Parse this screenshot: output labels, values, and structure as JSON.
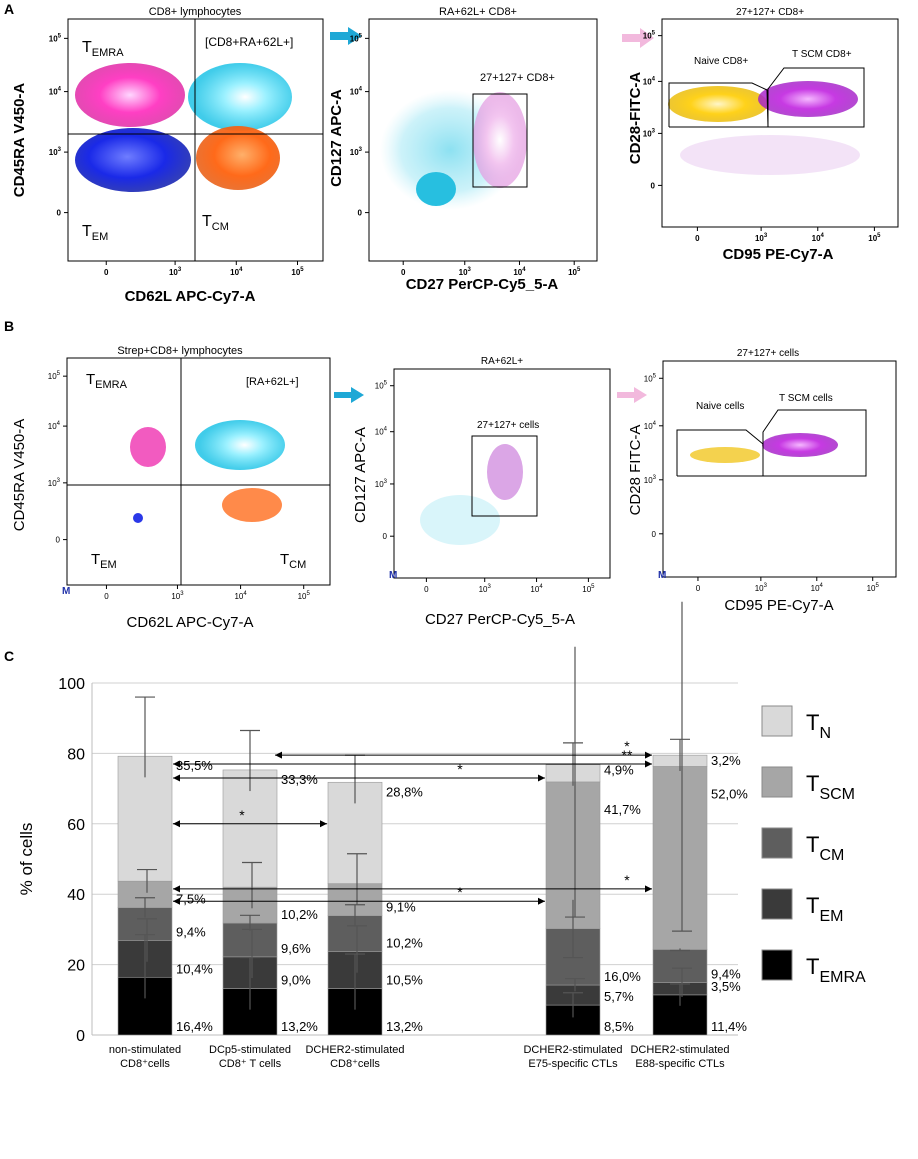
{
  "panels": {
    "A": {
      "letter": "A",
      "plot1": {
        "title": "CD8+ lymphocytes",
        "xlabel": "CD62L APC-Cy7-A",
        "ylabel": "CD45RA V450-A",
        "q_tl": "EMRA",
        "q_tr": "[CD8+RA+62L+]",
        "q_bl": "EM",
        "q_br": "CM",
        "t": "T"
      },
      "plot2": {
        "title": "RA+62L+ CD8+",
        "xlabel": "CD27 PerCP-Cy5_5-A",
        "ylabel": "CD127 APC-A",
        "gate": "27+127+ CD8+"
      },
      "plot3": {
        "title": "27+127+ CD8+",
        "xlabel": "CD95 PE-Cy7-A",
        "ylabel": "CD28-FITC-A",
        "gate_left": "Naive CD8+",
        "gate_right": "T SCM CD8+"
      }
    },
    "B": {
      "letter": "B",
      "plot1": {
        "title": "Strep+CD8+ lymphocytes",
        "xlabel": "CD62L APC-Cy7-A",
        "ylabel": "CD45RA V450-A",
        "q_tl": "EMRA",
        "q_tr": "[RA+62L+]",
        "q_bl": "EM",
        "q_br": "CM",
        "t": "T",
        "m": "M"
      },
      "plot2": {
        "title": "RA+62L+",
        "xlabel": "CD27 PerCP-Cy5_5-A",
        "ylabel": "CD127 APC-A",
        "gate": "27+127+ cells",
        "m": "M"
      },
      "plot3": {
        "title": "27+127+ cells",
        "xlabel": "CD95 PE-Cy7-A",
        "ylabel": "CD28 FITC-A",
        "gate_left": "Naive cells",
        "gate_right": "T SCM cells",
        "m": "M"
      }
    },
    "C": {
      "letter": "C"
    }
  },
  "ticks": {
    "y": [
      "10^5",
      "10^4",
      "10^3",
      "0"
    ],
    "x": [
      "0",
      "10^3",
      "10^4",
      "10^5"
    ]
  },
  "chart_data": {
    "type": "bar",
    "stacked": true,
    "ylabel": "% of cells",
    "ylim": [
      0,
      100
    ],
    "yticks": [
      0,
      20,
      40,
      60,
      80,
      100
    ],
    "categories": [
      [
        "non-stimulated",
        "CD8⁺cells"
      ],
      [
        "DCp5-stimulated",
        "CD8⁺ T cells"
      ],
      [
        "DCHER2-stimulated",
        "CD8⁺cells"
      ],
      [
        "DCHER2-stimulated",
        "E75-specific CTLs"
      ],
      [
        "DCHER2-stimulated",
        "E88-specific CTLs"
      ]
    ],
    "series": [
      {
        "name": "T_EMRA",
        "base": "T",
        "sub": "EMRA",
        "color": "#000000",
        "values": [
          16.4,
          13.2,
          13.2,
          8.5,
          11.4
        ],
        "labels": [
          "16,4%",
          "13,2%",
          "13,2%",
          "8,5%",
          "11,4%"
        ]
      },
      {
        "name": "T_EM",
        "base": "T",
        "sub": "EM",
        "color": "#3a3a3a",
        "values": [
          10.4,
          9.0,
          10.5,
          5.7,
          3.5
        ],
        "labels": [
          "10,4%",
          "9,0%",
          "10,5%",
          "5,7%",
          "3,5%"
        ]
      },
      {
        "name": "T_CM",
        "base": "T",
        "sub": "CM",
        "color": "#5e5e5e",
        "values": [
          9.4,
          9.6,
          10.2,
          16.0,
          9.4
        ],
        "labels": [
          "9,4%",
          "9,6%",
          "10,2%",
          "16,0%",
          "9,4%"
        ]
      },
      {
        "name": "T_SCM",
        "base": "T",
        "sub": "SCM",
        "color": "#a6a6a6",
        "values": [
          7.5,
          10.2,
          9.1,
          41.7,
          52.0
        ],
        "labels": [
          "7,5%",
          "10,2%",
          "9,1%",
          "41,7%",
          "52,0%"
        ]
      },
      {
        "name": "T_N",
        "base": "T",
        "sub": "N",
        "color": "#d9d9d9",
        "values": [
          35.5,
          33.3,
          28.8,
          4.9,
          3.2
        ],
        "labels": [
          "35,5%",
          "33,3%",
          "28,8%",
          "4,9%",
          "3,2%"
        ]
      }
    ],
    "error_bars_top": [
      [
        28.5,
        33,
        39,
        47,
        96
      ],
      [
        22,
        30,
        34,
        49,
        86.5
      ],
      [
        23,
        31,
        37,
        51.5,
        79.5
      ],
      [
        12,
        16,
        22,
        33.5,
        83
      ],
      [
        14.5,
        19,
        24,
        29.5,
        84
      ]
    ],
    "significance": [
      {
        "from": 0,
        "to": 2,
        "level": 60,
        "label": "*"
      },
      {
        "from": 1,
        "to": 4,
        "level": 79.5,
        "label": "*"
      },
      {
        "from": 0,
        "to": 4,
        "level": 77,
        "label": "**"
      },
      {
        "from": 0,
        "to": 3,
        "level": 73,
        "label": "*"
      },
      {
        "from": 0,
        "to": 4,
        "level": 41.5,
        "label": "*"
      },
      {
        "from": 0,
        "to": 3,
        "level": 38,
        "label": "*"
      }
    ]
  }
}
